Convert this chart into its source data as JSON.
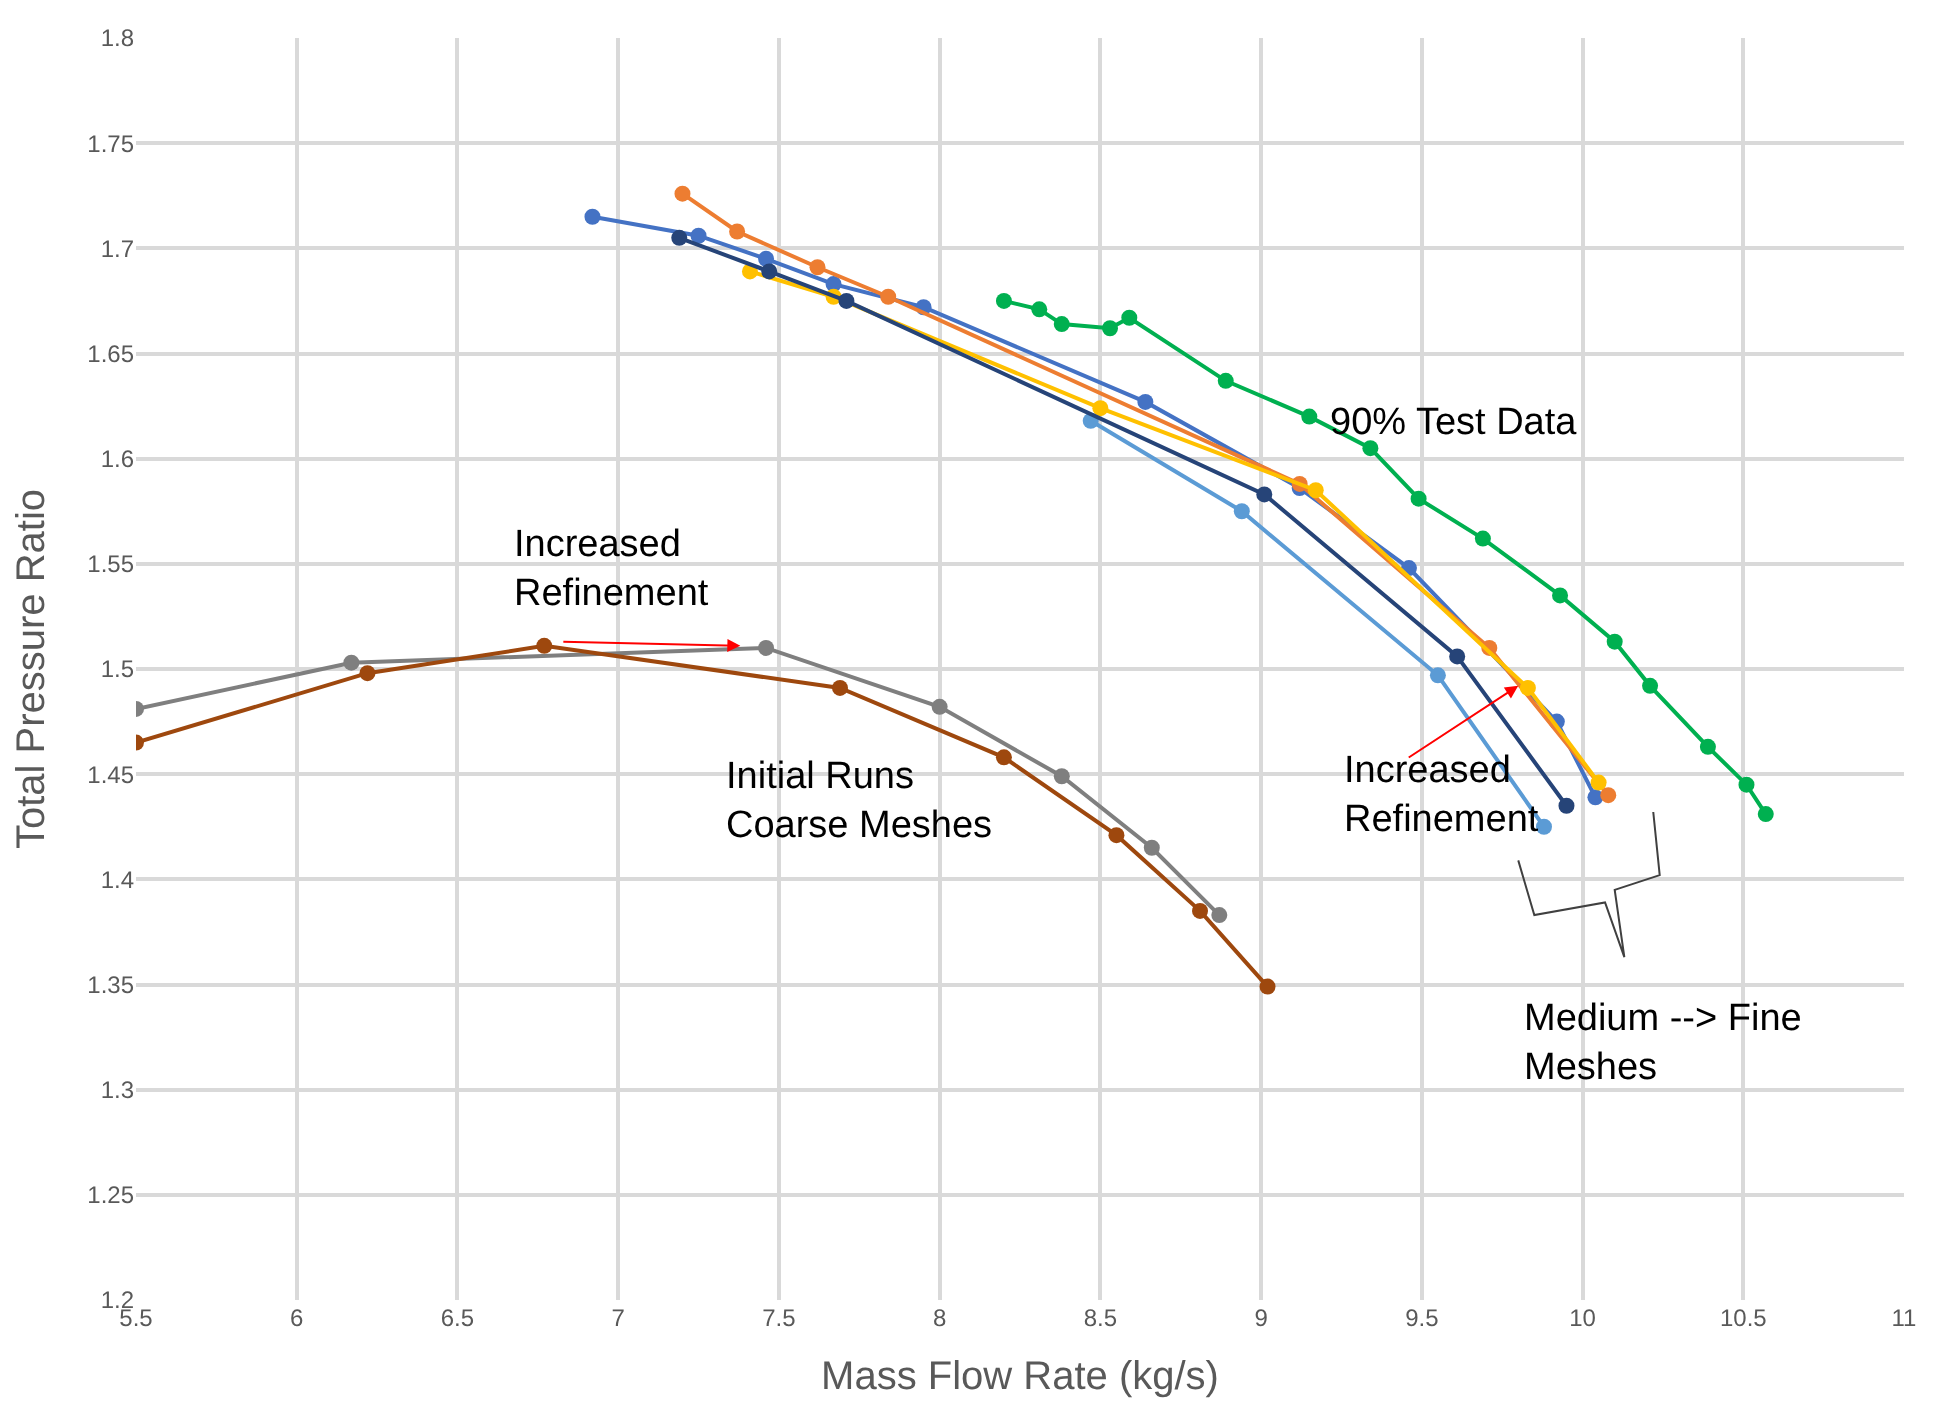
{
  "chart_data": {
    "type": "line",
    "xlabel": "Mass Flow Rate (kg/s)",
    "ylabel": "Total Pressure Ratio",
    "xlim": [
      5.5,
      11
    ],
    "xticks": [
      5.5,
      6,
      6.5,
      7,
      7.5,
      8,
      8.5,
      9,
      9.5,
      10,
      10.5,
      11
    ],
    "ylim": [
      1.2,
      1.8
    ],
    "yticks": [
      1.2,
      1.25,
      1.3,
      1.35,
      1.4,
      1.45,
      1.5,
      1.55,
      1.6,
      1.65,
      1.7,
      1.75,
      1.8
    ],
    "grid": true,
    "marker": "circle",
    "line_style": "solid",
    "series": [
      {
        "color": "#4472c4",
        "x": [
          6.92,
          7.25,
          7.46,
          7.67,
          7.95,
          8.64,
          9.12,
          9.46,
          9.92,
          10.04
        ],
        "values": [
          1.715,
          1.706,
          1.695,
          1.683,
          1.672,
          1.627,
          1.586,
          1.548,
          1.475,
          1.439
        ]
      },
      {
        "color": "#ed7d31",
        "x": [
          7.2,
          7.37,
          7.62,
          7.84,
          9.12,
          9.71,
          10.08
        ],
        "values": [
          1.726,
          1.708,
          1.691,
          1.677,
          1.588,
          1.51,
          1.44
        ]
      },
      {
        "color": "#ffc000",
        "x": [
          7.41,
          7.67,
          8.5,
          9.17,
          9.83,
          10.05
        ],
        "values": [
          1.689,
          1.677,
          1.624,
          1.585,
          1.491,
          1.446
        ]
      },
      {
        "color": "#5b9bd5",
        "x": [
          8.47,
          8.94,
          9.55,
          9.88
        ],
        "values": [
          1.618,
          1.575,
          1.497,
          1.425
        ]
      },
      {
        "color": "#264478",
        "x": [
          7.19,
          7.47,
          7.71,
          9.01,
          9.61,
          9.95
        ],
        "values": [
          1.705,
          1.689,
          1.675,
          1.583,
          1.506,
          1.435
        ]
      },
      {
        "color": "#00b050",
        "x": [
          8.2,
          8.31,
          8.38,
          8.53,
          8.59,
          8.89,
          9.15,
          9.34,
          9.49,
          9.69,
          9.93,
          10.1,
          10.21,
          10.39,
          10.51,
          10.57
        ],
        "values": [
          1.675,
          1.671,
          1.664,
          1.662,
          1.667,
          1.637,
          1.62,
          1.605,
          1.581,
          1.562,
          1.535,
          1.513,
          1.492,
          1.463,
          1.445,
          1.431
        ]
      },
      {
        "color": "#7f7f7f",
        "x": [
          5.5,
          6.17,
          7.46,
          8.0,
          8.38,
          8.66,
          8.87
        ],
        "values": [
          1.481,
          1.503,
          1.51,
          1.482,
          1.449,
          1.415,
          1.383
        ]
      },
      {
        "color": "#9e480e",
        "x": [
          5.5,
          6.22,
          6.77,
          7.69,
          8.2,
          8.55,
          8.81,
          9.02
        ],
        "values": [
          1.465,
          1.498,
          1.511,
          1.491,
          1.458,
          1.421,
          1.385,
          1.349
        ]
      }
    ],
    "annotations": [
      {
        "text": "Increased\nRefinement",
        "x": 7.38,
        "y": 1.511
      },
      {
        "text": "Increased\nRefinement",
        "x": 9.8,
        "y": 1.492
      },
      "Initial Runs\nCoarse Meshes",
      "90% Test Data",
      "Medium --> Fine\nMeshes"
    ]
  }
}
